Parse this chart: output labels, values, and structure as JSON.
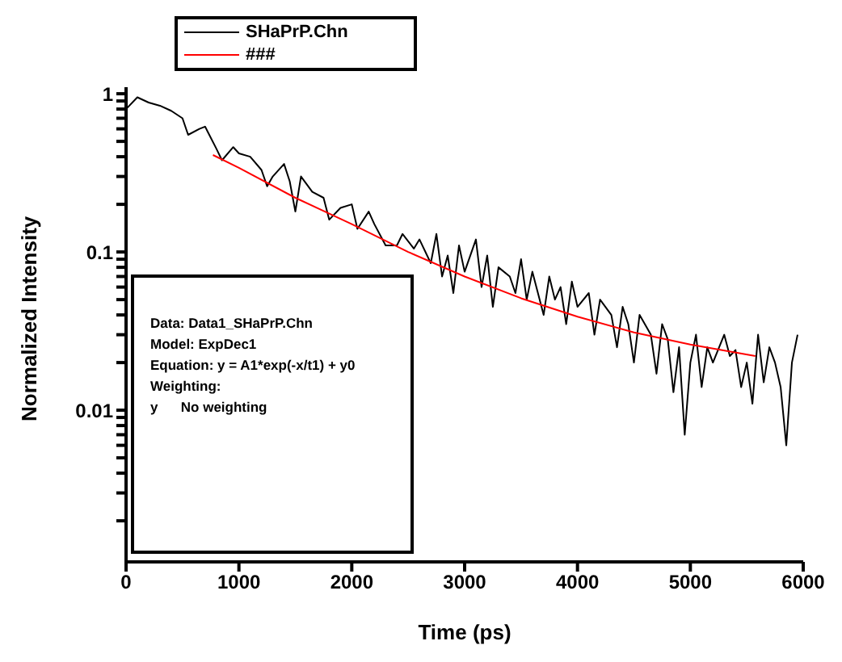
{
  "chart_data": {
    "type": "line",
    "xlabel": "Time (ps)",
    "ylabel": "Normalized Intensity",
    "log": "y",
    "legend": "top",
    "grid": false,
    "marker": "none",
    "line_style": "solid",
    "xlim": [
      0,
      6000
    ],
    "xticks": [
      0,
      1000,
      2000,
      3000,
      4000,
      5000,
      6000
    ],
    "ylim": [
      0.0011,
      1.1
    ],
    "yticks": [
      {
        "value": 0.002,
        "label": null
      },
      {
        "value": 0.003,
        "label": null
      },
      {
        "value": 0.004,
        "label": null
      },
      {
        "value": 0.005,
        "label": null
      },
      {
        "value": 0.006,
        "label": null
      },
      {
        "value": 0.007,
        "label": null
      },
      {
        "value": 0.008,
        "label": null
      },
      {
        "value": 0.009,
        "label": null
      },
      0.01,
      {
        "value": 0.02,
        "label": null
      },
      {
        "value": 0.03,
        "label": null
      },
      {
        "value": 0.04,
        "label": null
      },
      {
        "value": 0.05,
        "label": null
      },
      {
        "value": 0.06,
        "label": null
      },
      {
        "value": 0.07,
        "label": null
      },
      {
        "value": 0.08,
        "label": null
      },
      {
        "value": 0.09,
        "label": null
      },
      0.1,
      {
        "value": 0.2,
        "label": null
      },
      {
        "value": 0.3,
        "label": null
      },
      {
        "value": 0.4,
        "label": null
      },
      {
        "value": 0.5,
        "label": null
      },
      {
        "value": 0.6,
        "label": null
      },
      {
        "value": 0.7,
        "label": null
      },
      {
        "value": 0.8,
        "label": null
      },
      {
        "value": 0.9,
        "label": null
      },
      1
    ],
    "series": [
      {
        "name": "SHaPrP.Chn",
        "color": "#000000",
        "x": [
          0,
          100,
          200,
          300,
          400,
          500,
          550,
          650,
          700,
          800,
          850,
          950,
          1000,
          1100,
          1200,
          1250,
          1300,
          1400,
          1450,
          1500,
          1550,
          1650,
          1750,
          1800,
          1900,
          2000,
          2050,
          2150,
          2200,
          2300,
          2400,
          2450,
          2550,
          2600,
          2700,
          2750,
          2800,
          2850,
          2900,
          2950,
          3000,
          3100,
          3150,
          3200,
          3250,
          3300,
          3400,
          3450,
          3500,
          3550,
          3600,
          3700,
          3750,
          3800,
          3850,
          3900,
          3950,
          4000,
          4100,
          4150,
          4200,
          4300,
          4350,
          4400,
          4450,
          4500,
          4550,
          4650,
          4700,
          4750,
          4800,
          4850,
          4900,
          4950,
          5000,
          5050,
          5100,
          5150,
          5200,
          5300,
          5350,
          5400,
          5450,
          5500,
          5550,
          5600,
          5650,
          5700,
          5750,
          5800,
          5850,
          5900,
          5950
        ],
        "values": [
          0.8,
          0.95,
          0.88,
          0.84,
          0.78,
          0.7,
          0.55,
          0.6,
          0.62,
          0.45,
          0.38,
          0.46,
          0.42,
          0.4,
          0.33,
          0.26,
          0.3,
          0.36,
          0.28,
          0.18,
          0.3,
          0.24,
          0.22,
          0.16,
          0.19,
          0.2,
          0.14,
          0.18,
          0.15,
          0.11,
          0.11,
          0.13,
          0.105,
          0.12,
          0.085,
          0.13,
          0.07,
          0.095,
          0.055,
          0.11,
          0.075,
          0.12,
          0.06,
          0.095,
          0.045,
          0.08,
          0.07,
          0.055,
          0.09,
          0.05,
          0.075,
          0.04,
          0.07,
          0.05,
          0.06,
          0.035,
          0.065,
          0.045,
          0.055,
          0.03,
          0.05,
          0.04,
          0.025,
          0.045,
          0.035,
          0.02,
          0.04,
          0.03,
          0.017,
          0.035,
          0.028,
          0.013,
          0.025,
          0.007,
          0.02,
          0.03,
          0.014,
          0.025,
          0.02,
          0.03,
          0.022,
          0.024,
          0.014,
          0.02,
          0.011,
          0.03,
          0.015,
          0.025,
          0.02,
          0.014,
          0.006,
          0.02,
          0.03
        ]
      },
      {
        "name": "###",
        "color": "#ff0000",
        "x": [
          770,
          1000,
          1500,
          2000,
          2500,
          3000,
          3500,
          4000,
          4500,
          5000,
          5576
        ],
        "values": [
          0.41,
          0.34,
          0.22,
          0.15,
          0.1,
          0.07,
          0.051,
          0.039,
          0.031,
          0.026,
          0.022
        ]
      }
    ],
    "annotations": [
      "Data: Data1_SHaPrP.Chn",
      "Model: ExpDec1",
      "Equation: y = A1*exp(-x/t1) + y0",
      "Weighting:",
      "y      No weighting"
    ]
  }
}
